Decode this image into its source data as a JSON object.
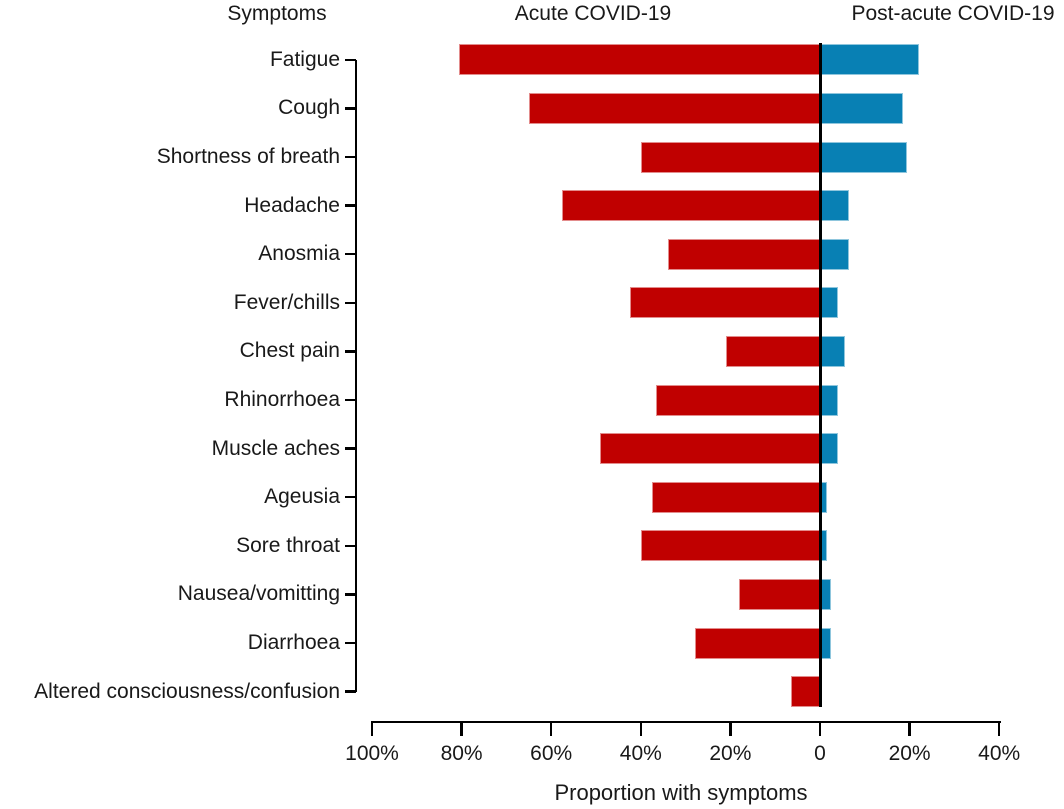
{
  "header": {
    "symptoms_label": "Symptoms",
    "acute_label": "Acute COVID-19",
    "post_acute_label": "Post-acute COVID-19"
  },
  "chart_data": {
    "type": "bar",
    "orientation": "horizontal-diverging",
    "title": "",
    "categories": [
      "Fatigue",
      "Cough",
      "Shortness of breath",
      "Headache",
      "Anosmia",
      "Fever/chills",
      "Chest pain",
      "Rhinorrhoea",
      "Muscle aches",
      "Ageusia",
      "Sore throat",
      "Nausea/vomitting",
      "Diarrhoea",
      "Altered consciousness/confusion"
    ],
    "series": [
      {
        "name": "Acute COVID-19",
        "side": "left",
        "color": "#c00000",
        "values": [
          80.5,
          65,
          40,
          57.5,
          34,
          42.5,
          21,
          36.5,
          49,
          37.5,
          40,
          18,
          28,
          6.5
        ]
      },
      {
        "name": "Post-acute COVID-19",
        "side": "right",
        "color": "#0880b4",
        "values": [
          22,
          18.5,
          19.5,
          6.5,
          6.5,
          4,
          5.5,
          4,
          4,
          1.5,
          1.5,
          2.5,
          2.5,
          0
        ]
      }
    ],
    "value_unit": "%",
    "xlabel": "Proportion with symptoms",
    "x_axis": {
      "tick_values": [
        -100,
        -80,
        -60,
        -40,
        -20,
        0,
        20,
        40
      ],
      "tick_labels": [
        "100%",
        "80%",
        "60%",
        "40%",
        "20%",
        "0",
        "20%",
        "40%"
      ],
      "xlim": [
        -100,
        40
      ]
    },
    "zero_line_color": "#000000",
    "grid": false,
    "legend_position": "column headers above chart act as series labels"
  }
}
